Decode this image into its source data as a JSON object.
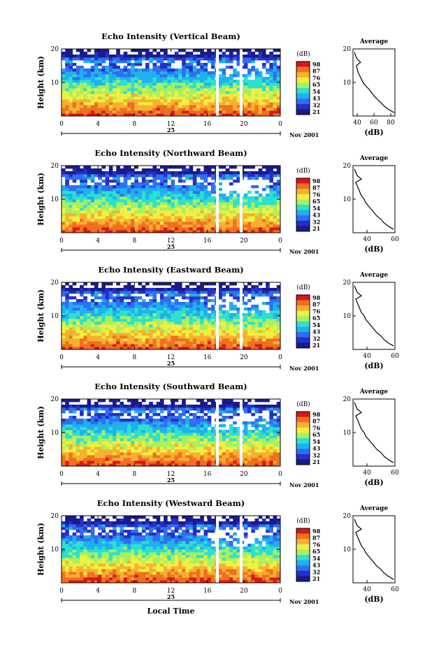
{
  "xlabel_bottom": "Local Time",
  "colorbar": {
    "unit": "(dB)",
    "ticks": [
      "98",
      "87",
      "76",
      "65",
      "54",
      "43",
      "32",
      "21"
    ],
    "colors": [
      "#1a1a8c",
      "#2430c8",
      "#2f6ff0",
      "#1fb0f0",
      "#2de0d0",
      "#a8f060",
      "#f0f040",
      "#f8b030",
      "#f07020",
      "#d81818"
    ]
  },
  "x_axis": {
    "ticks": [
      "0",
      "4",
      "8",
      "12",
      "16",
      "20",
      "0"
    ],
    "date_label": "25",
    "right_label": "Nov 2001"
  },
  "y_axis": {
    "label": "Height (km)",
    "ticks": [
      "20",
      "10"
    ]
  },
  "avg_panel": {
    "title": "Average",
    "xlabel": "(dB)"
  },
  "chart_data": [
    {
      "type": "heatmap",
      "title": "Echo Intensity (Vertical Beam)",
      "ylabel": "Height (km)",
      "xlabel": "",
      "xlim": [
        0,
        24
      ],
      "ylim": [
        0,
        20
      ],
      "colorbar_range": [
        21,
        98
      ],
      "data_gaps_hours": [
        17.1,
        19.7
      ],
      "profile": {
        "title": "Average",
        "xlabel": "(dB)",
        "xticks": [
          "40",
          "60",
          "80"
        ],
        "xlim": [
          35,
          85
        ],
        "height_km": [
          1,
          2,
          3,
          4,
          5,
          6,
          7,
          8,
          9,
          10,
          11,
          12,
          13,
          14,
          15,
          16,
          17,
          18,
          19
        ],
        "mean_db": [
          84,
          77,
          72,
          68,
          64,
          60,
          57,
          54,
          50,
          47,
          45,
          43,
          41,
          40,
          39,
          44,
          40,
          38,
          37
        ]
      }
    },
    {
      "type": "heatmap",
      "title": "Echo Intensity (Northward Beam)",
      "ylabel": "Height (km)",
      "xlabel": "",
      "xlim": [
        0,
        24
      ],
      "ylim": [
        0,
        20
      ],
      "colorbar_range": [
        21,
        98
      ],
      "data_gaps_hours": [
        17.1,
        19.7
      ],
      "profile": {
        "title": "Average",
        "xlabel": "(dB)",
        "xticks": [
          "40",
          "60"
        ],
        "xlim": [
          30,
          60
        ],
        "height_km": [
          1,
          2,
          3,
          4,
          5,
          6,
          7,
          8,
          9,
          10,
          11,
          12,
          13,
          14,
          15,
          16,
          17,
          18,
          19
        ],
        "mean_db": [
          59,
          55,
          52,
          50,
          47,
          45,
          43,
          41,
          39,
          38,
          36,
          35,
          34,
          33,
          32,
          36,
          33,
          32,
          31
        ]
      }
    },
    {
      "type": "heatmap",
      "title": "Echo Intensity (Eastward Beam)",
      "ylabel": "Height (km)",
      "xlabel": "",
      "xlim": [
        0,
        24
      ],
      "ylim": [
        0,
        20
      ],
      "colorbar_range": [
        21,
        98
      ],
      "data_gaps_hours": [
        17.1,
        19.7
      ],
      "profile": {
        "title": "Average",
        "xlabel": "(dB)",
        "xticks": [
          "40",
          "60"
        ],
        "xlim": [
          30,
          60
        ],
        "height_km": [
          1,
          2,
          3,
          4,
          5,
          6,
          7,
          8,
          9,
          10,
          11,
          12,
          13,
          14,
          15,
          16,
          17,
          18,
          19
        ],
        "mean_db": [
          59,
          55,
          52,
          50,
          47,
          45,
          43,
          41,
          39,
          38,
          36,
          35,
          34,
          33,
          32,
          36,
          33,
          32,
          31
        ]
      }
    },
    {
      "type": "heatmap",
      "title": "Echo Intensity (Southward Beam)",
      "ylabel": "Height (km)",
      "xlabel": "",
      "xlim": [
        0,
        24
      ],
      "ylim": [
        0,
        20
      ],
      "colorbar_range": [
        21,
        98
      ],
      "data_gaps_hours": [
        17.1,
        19.7
      ],
      "profile": {
        "title": "Average",
        "xlabel": "(dB)",
        "xticks": [
          "40",
          "60"
        ],
        "xlim": [
          30,
          60
        ],
        "height_km": [
          1,
          2,
          3,
          4,
          5,
          6,
          7,
          8,
          9,
          10,
          11,
          12,
          13,
          14,
          15,
          16,
          17,
          18,
          19
        ],
        "mean_db": [
          59,
          55,
          52,
          50,
          47,
          45,
          43,
          41,
          39,
          38,
          36,
          35,
          34,
          33,
          32,
          36,
          33,
          32,
          31
        ]
      }
    },
    {
      "type": "heatmap",
      "title": "Echo Intensity (Westward Beam)",
      "ylabel": "Height (km)",
      "xlabel": "Local Time",
      "xlim": [
        0,
        24
      ],
      "ylim": [
        0,
        20
      ],
      "colorbar_range": [
        21,
        98
      ],
      "data_gaps_hours": [
        17.1,
        19.7
      ],
      "profile": {
        "title": "Average",
        "xlabel": "(dB)",
        "xticks": [
          "40",
          "60"
        ],
        "xlim": [
          30,
          60
        ],
        "height_km": [
          1,
          2,
          3,
          4,
          5,
          6,
          7,
          8,
          9,
          10,
          11,
          12,
          13,
          14,
          15,
          16,
          17,
          18,
          19
        ],
        "mean_db": [
          59,
          55,
          52,
          50,
          47,
          45,
          43,
          41,
          39,
          38,
          36,
          35,
          34,
          33,
          32,
          36,
          33,
          32,
          31
        ]
      }
    }
  ]
}
